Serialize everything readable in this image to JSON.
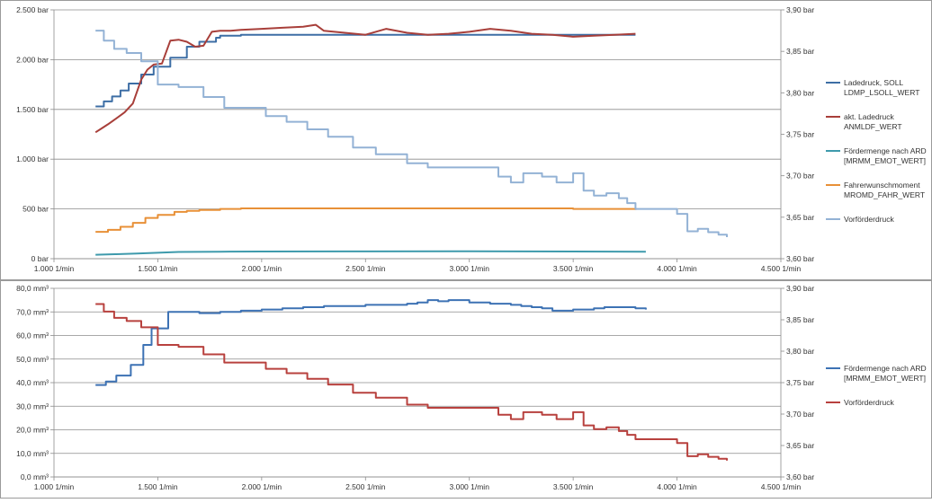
{
  "chart_data": [
    {
      "type": "line",
      "x_ticks": [
        {
          "value": 1000,
          "label": "1.000 1/min"
        },
        {
          "value": 1500,
          "label": "1.500 1/min"
        },
        {
          "value": 2000,
          "label": "2.000 1/min"
        },
        {
          "value": 2500,
          "label": "2.500 1/min"
        },
        {
          "value": 3000,
          "label": "3.000 1/min"
        },
        {
          "value": 3500,
          "label": "3.500 1/min"
        },
        {
          "value": 4000,
          "label": "4.000 1/min"
        },
        {
          "value": 4500,
          "label": "4.500 1/min"
        }
      ],
      "xlim": [
        1000,
        4500
      ],
      "y_left": {
        "lim": [
          0,
          2500
        ],
        "ticks": [
          {
            "value": 0,
            "label": "0 bar"
          },
          {
            "value": 500,
            "label": "500 bar"
          },
          {
            "value": 1000,
            "label": "1.000 bar"
          },
          {
            "value": 1500,
            "label": "1.500 bar"
          },
          {
            "value": 2000,
            "label": "2.000 bar"
          },
          {
            "value": 2500,
            "label": "2.500 bar"
          }
        ]
      },
      "y_right": {
        "lim": [
          3.6,
          3.9
        ],
        "ticks": [
          {
            "value": 3.6,
            "label": "3,60 bar"
          },
          {
            "value": 3.65,
            "label": "3,65 bar"
          },
          {
            "value": 3.7,
            "label": "3,70 bar"
          },
          {
            "value": 3.75,
            "label": "3,75 bar"
          },
          {
            "value": 3.8,
            "label": "3,80 bar"
          },
          {
            "value": 3.85,
            "label": "3,85 bar"
          },
          {
            "value": 3.9,
            "label": "3,90 bar"
          }
        ]
      },
      "grid": true,
      "legend_position": "right",
      "series": [
        {
          "name": "Ladedruck, SOLL LDMP_LSOLL_WERT",
          "legend_lines": [
            "Ladedruck, SOLL",
            "LDMP_LSOLL_WERT"
          ],
          "axis": "left",
          "color": "#3d6ea5",
          "step": true,
          "x": [
            1200,
            1240,
            1280,
            1320,
            1360,
            1420,
            1480,
            1560,
            1640,
            1700,
            1780,
            1800,
            1900,
            2000,
            2200,
            2400,
            2600,
            2800,
            3000,
            3200,
            3400,
            3600,
            3800
          ],
          "y": [
            1530,
            1580,
            1630,
            1690,
            1760,
            1850,
            1930,
            2020,
            2130,
            2180,
            2220,
            2240,
            2250,
            2250,
            2250,
            2250,
            2250,
            2250,
            2250,
            2250,
            2250,
            2250,
            2250
          ]
        },
        {
          "name": "akt. Ladedruck ANMLDF_WERT",
          "legend_lines": [
            "akt. Ladedruck",
            "ANMLDF_WERT"
          ],
          "axis": "left",
          "color": "#a83f3a",
          "step": false,
          "x": [
            1200,
            1230,
            1260,
            1300,
            1340,
            1380,
            1420,
            1450,
            1480,
            1520,
            1560,
            1600,
            1640,
            1680,
            1720,
            1760,
            1800,
            1850,
            1900,
            2000,
            2100,
            2200,
            2260,
            2300,
            2400,
            2500,
            2600,
            2700,
            2800,
            2900,
            3000,
            3100,
            3200,
            3300,
            3400,
            3500,
            3600,
            3700,
            3800
          ],
          "y": [
            1270,
            1310,
            1350,
            1410,
            1470,
            1560,
            1800,
            1900,
            1950,
            1960,
            2190,
            2200,
            2180,
            2130,
            2140,
            2280,
            2290,
            2290,
            2300,
            2310,
            2320,
            2330,
            2350,
            2290,
            2270,
            2250,
            2310,
            2270,
            2250,
            2260,
            2280,
            2310,
            2290,
            2260,
            2250,
            2230,
            2240,
            2250,
            2260
          ]
        },
        {
          "name": "Fördermenge nach ARD [MRMM_EMOT_WERT]",
          "legend_lines": [
            "Fördermenge nach ARD",
            "[MRMM_EMOT_WERT]"
          ],
          "axis": "left",
          "color": "#3e9aac",
          "step": false,
          "x": [
            1200,
            1300,
            1400,
            1500,
            1600,
            1800,
            2000,
            2500,
            3000,
            3500,
            3850
          ],
          "y": [
            40,
            45,
            52,
            60,
            68,
            70,
            72,
            73,
            75,
            72,
            70
          ]
        },
        {
          "name": "Fahrerwunschmoment MROMD_FAHR_WERT",
          "legend_lines": [
            "Fahrerwunschmoment",
            "MROMD_FAHR_WERT"
          ],
          "axis": "left",
          "color": "#e89037",
          "step": true,
          "x": [
            1200,
            1260,
            1320,
            1380,
            1440,
            1500,
            1580,
            1640,
            1700,
            1800,
            1900,
            2000,
            2200,
            2500,
            3000,
            3500,
            3800
          ],
          "y": [
            270,
            290,
            320,
            360,
            410,
            440,
            470,
            480,
            490,
            500,
            505,
            505,
            505,
            505,
            505,
            500,
            490
          ]
        },
        {
          "name": "Vorförderdruck",
          "legend_lines": [
            "Vorförderdruck"
          ],
          "axis": "right",
          "color": "#93b2d5",
          "step": true,
          "x": [
            1200,
            1240,
            1290,
            1350,
            1420,
            1500,
            1600,
            1720,
            1820,
            1920,
            2020,
            2120,
            2220,
            2320,
            2440,
            2550,
            2700,
            2800,
            2900,
            3000,
            3140,
            3200,
            3260,
            3350,
            3420,
            3500,
            3550,
            3600,
            3660,
            3720,
            3760,
            3800,
            4000,
            4050,
            4100,
            4150,
            4200,
            4240
          ],
          "y": [
            3.875,
            3.863,
            3.853,
            3.848,
            3.838,
            3.81,
            3.807,
            3.795,
            3.782,
            3.782,
            3.772,
            3.765,
            3.756,
            3.747,
            3.734,
            3.726,
            3.715,
            3.71,
            3.71,
            3.71,
            3.699,
            3.692,
            3.703,
            3.699,
            3.692,
            3.703,
            3.682,
            3.676,
            3.679,
            3.673,
            3.667,
            3.66,
            3.654,
            3.633,
            3.636,
            3.632,
            3.629,
            3.626
          ]
        }
      ]
    },
    {
      "type": "line",
      "x_ticks": [
        {
          "value": 1000,
          "label": "1.000 1/min"
        },
        {
          "value": 1500,
          "label": "1.500 1/min"
        },
        {
          "value": 2000,
          "label": "2.000 1/min"
        },
        {
          "value": 2500,
          "label": "2.500 1/min"
        },
        {
          "value": 3000,
          "label": "3.000 1/min"
        },
        {
          "value": 3500,
          "label": "3.500 1/min"
        },
        {
          "value": 4000,
          "label": "4.000 1/min"
        },
        {
          "value": 4500,
          "label": "4.500 1/min"
        }
      ],
      "xlim": [
        1000,
        4500
      ],
      "y_left": {
        "lim": [
          0,
          80
        ],
        "ticks": [
          {
            "value": 0,
            "label": "0,0 mm³"
          },
          {
            "value": 10,
            "label": "10,0 mm³"
          },
          {
            "value": 20,
            "label": "20,0 mm³"
          },
          {
            "value": 30,
            "label": "30,0 mm³"
          },
          {
            "value": 40,
            "label": "40,0 mm³"
          },
          {
            "value": 50,
            "label": "50,0 mm³"
          },
          {
            "value": 60,
            "label": "60,0 mm³"
          },
          {
            "value": 70,
            "label": "70,0 mm³"
          },
          {
            "value": 80,
            "label": "80,0 mm³"
          }
        ]
      },
      "y_right": {
        "lim": [
          3.6,
          3.9
        ],
        "ticks": [
          {
            "value": 3.6,
            "label": "3,60 bar"
          },
          {
            "value": 3.65,
            "label": "3,65 bar"
          },
          {
            "value": 3.7,
            "label": "3,70 bar"
          },
          {
            "value": 3.75,
            "label": "3,75 bar"
          },
          {
            "value": 3.8,
            "label": "3,80 bar"
          },
          {
            "value": 3.85,
            "label": "3,85 bar"
          },
          {
            "value": 3.9,
            "label": "3,90 bar"
          }
        ]
      },
      "grid": true,
      "legend_position": "right",
      "series": [
        {
          "name": "Fördermenge nach ARD [MRMM_EMOT_WERT]",
          "legend_lines": [
            "Fördermenge nach ARD",
            "[MRMM_EMOT_WERT]"
          ],
          "axis": "left",
          "color": "#3d72b4",
          "step": true,
          "x": [
            1200,
            1250,
            1300,
            1370,
            1430,
            1470,
            1550,
            1600,
            1700,
            1800,
            1900,
            2000,
            2100,
            2200,
            2300,
            2400,
            2500,
            2600,
            2700,
            2750,
            2800,
            2850,
            2900,
            3000,
            3050,
            3100,
            3150,
            3200,
            3250,
            3300,
            3350,
            3400,
            3450,
            3500,
            3550,
            3600,
            3650,
            3700,
            3750,
            3800,
            3850
          ],
          "y": [
            39,
            40.5,
            43,
            47.5,
            56,
            63,
            70,
            70,
            69.5,
            70,
            70.5,
            71,
            71.5,
            72,
            72.5,
            72.5,
            73,
            73,
            73.5,
            74,
            75,
            74.5,
            75,
            74,
            74,
            73.5,
            73.5,
            73,
            72.5,
            72,
            71.5,
            70.5,
            70.5,
            71,
            71,
            71.5,
            72,
            72,
            72,
            71.5,
            71
          ]
        },
        {
          "name": "Vorförderdruck",
          "legend_lines": [
            "Vorförderdruck"
          ],
          "axis": "right",
          "color": "#b8413e",
          "step": true,
          "x": [
            1200,
            1240,
            1290,
            1350,
            1420,
            1500,
            1600,
            1720,
            1820,
            1920,
            2020,
            2120,
            2220,
            2320,
            2440,
            2550,
            2700,
            2800,
            2900,
            3000,
            3140,
            3200,
            3260,
            3350,
            3420,
            3500,
            3550,
            3600,
            3660,
            3720,
            3760,
            3800,
            4000,
            4050,
            4100,
            4150,
            4200,
            4240
          ],
          "y": [
            3.875,
            3.863,
            3.853,
            3.848,
            3.838,
            3.81,
            3.807,
            3.795,
            3.782,
            3.782,
            3.772,
            3.765,
            3.756,
            3.747,
            3.734,
            3.726,
            3.715,
            3.71,
            3.71,
            3.71,
            3.699,
            3.692,
            3.703,
            3.699,
            3.692,
            3.703,
            3.682,
            3.676,
            3.679,
            3.673,
            3.667,
            3.66,
            3.654,
            3.633,
            3.636,
            3.632,
            3.629,
            3.626
          ]
        }
      ]
    }
  ]
}
